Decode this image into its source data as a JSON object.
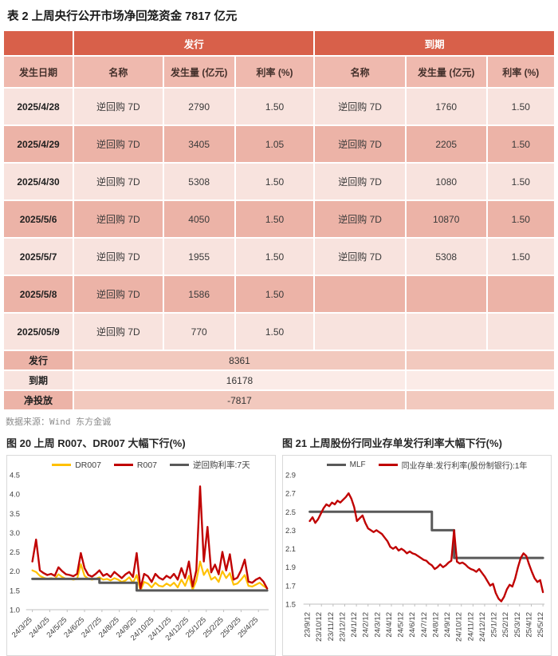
{
  "table": {
    "title": "表 2  上周央行公开市场净回笼资金 7817 亿元",
    "group_headers": [
      "发行",
      "到期"
    ],
    "columns": [
      "发生日期",
      "名称",
      "发生量 (亿元)",
      "利率 (%)",
      "名称",
      "发生量 (亿元)",
      "利率 (%)"
    ],
    "rows": [
      [
        "2025/4/28",
        "逆回购 7D",
        "2790",
        "1.50",
        "逆回购 7D",
        "1760",
        "1.50"
      ],
      [
        "2025/4/29",
        "逆回购 7D",
        "3405",
        "1.05",
        "逆回购 7D",
        "2205",
        "1.50"
      ],
      [
        "2025/4/30",
        "逆回购 7D",
        "5308",
        "1.50",
        "逆回购 7D",
        "1080",
        "1.50"
      ],
      [
        "2025/5/6",
        "逆回购 7D",
        "4050",
        "1.50",
        "逆回购 7D",
        "10870",
        "1.50"
      ],
      [
        "2025/5/7",
        "逆回购 7D",
        "1955",
        "1.50",
        "逆回购 7D",
        "5308",
        "1.50"
      ],
      [
        "2025/5/8",
        "逆回购 7D",
        "1586",
        "1.50",
        "",
        "",
        ""
      ],
      [
        "2025/05/9",
        "逆回购 7D",
        "770",
        "1.50",
        "",
        "",
        ""
      ]
    ],
    "summary_rows": [
      {
        "label": "发行",
        "value": "8361"
      },
      {
        "label": "到期",
        "value": "16178"
      },
      {
        "label": "净投放",
        "value": "-7817"
      }
    ],
    "source": "数据来源：Wind 东方金诚"
  },
  "colors": {
    "header_bg": "#D8604A",
    "subheader_bg": "#EFB9AE",
    "row_light": "#F8E3DE",
    "row_dark": "#ECB3A7",
    "series_yellow": "#FFC000",
    "series_red": "#C00000",
    "series_gray": "#595959",
    "axis_gray": "#bfbfbf"
  },
  "chart_data": [
    {
      "type": "line",
      "title": "图 20 上周 R007、DR007 大幅下行(%)",
      "ylim": [
        1.0,
        4.5
      ],
      "y_ticks": [
        4.5,
        4.0,
        3.5,
        3.0,
        2.5,
        2.0,
        1.5,
        1.0
      ],
      "x_labels": [
        "24/3/25",
        "24/4/25",
        "24/5/25",
        "24/6/25",
        "24/7/25",
        "24/8/25",
        "24/9/25",
        "24/10/25",
        "24/11/25",
        "24/12/25",
        "25/1/25",
        "25/2/25",
        "25/3/25",
        "25/4/25"
      ],
      "legend_position": "top",
      "grid": false,
      "series": [
        {
          "name": "DR007",
          "color": "#FFC000",
          "width": 2.2,
          "step": false,
          "values": [
            2.02,
            1.98,
            1.88,
            1.83,
            1.8,
            1.82,
            1.8,
            1.92,
            1.85,
            1.8,
            1.8,
            1.78,
            1.8,
            2.18,
            1.88,
            1.8,
            1.78,
            1.8,
            1.84,
            1.78,
            1.8,
            1.76,
            1.82,
            1.78,
            1.72,
            1.76,
            1.84,
            1.7,
            1.9,
            1.5,
            1.72,
            1.68,
            1.58,
            1.7,
            1.62,
            1.6,
            1.68,
            1.62,
            1.7,
            1.58,
            1.78,
            1.62,
            1.88,
            1.52,
            1.75,
            2.25,
            1.9,
            2.05,
            1.78,
            1.85,
            1.72,
            2.0,
            1.82,
            1.95,
            1.65,
            1.68,
            1.78,
            1.9,
            1.62,
            1.6,
            1.65,
            1.7,
            1.62,
            1.55
          ]
        },
        {
          "name": "R007",
          "color": "#C00000",
          "width": 2.4,
          "step": false,
          "values": [
            2.25,
            2.82,
            2.02,
            1.95,
            1.9,
            1.93,
            1.88,
            2.1,
            2.0,
            1.92,
            1.9,
            1.87,
            1.93,
            2.47,
            2.08,
            1.9,
            1.86,
            1.93,
            2.02,
            1.88,
            1.93,
            1.85,
            1.98,
            1.9,
            1.82,
            1.92,
            1.98,
            1.85,
            2.47,
            1.55,
            1.93,
            1.87,
            1.72,
            1.93,
            1.83,
            1.78,
            1.88,
            1.82,
            1.93,
            1.78,
            2.08,
            1.82,
            2.25,
            1.6,
            2.02,
            4.2,
            2.25,
            3.15,
            1.97,
            2.17,
            1.92,
            2.5,
            2.02,
            2.44,
            1.78,
            1.83,
            2.02,
            2.3,
            1.73,
            1.7,
            1.78,
            1.83,
            1.73,
            1.55
          ]
        },
        {
          "name": "逆回购利率:7天",
          "color": "#595959",
          "width": 3,
          "step": true,
          "values": [
            1.8,
            1.8,
            1.8,
            1.8,
            1.8,
            1.8,
            1.8,
            1.8,
            1.8,
            1.8,
            1.8,
            1.8,
            1.8,
            1.8,
            1.8,
            1.8,
            1.8,
            1.8,
            1.7,
            1.7,
            1.7,
            1.7,
            1.7,
            1.7,
            1.7,
            1.7,
            1.7,
            1.7,
            1.5,
            1.5,
            1.5,
            1.5,
            1.5,
            1.5,
            1.5,
            1.5,
            1.5,
            1.5,
            1.5,
            1.5,
            1.5,
            1.5,
            1.5,
            1.5,
            1.5,
            1.5,
            1.5,
            1.5,
            1.5,
            1.5,
            1.5,
            1.5,
            1.5,
            1.5,
            1.5,
            1.5,
            1.5,
            1.5,
            1.5,
            1.5,
            1.5,
            1.5,
            1.5,
            1.5
          ]
        }
      ]
    },
    {
      "type": "line",
      "title": "图 21 上周股份行同业存单发行利率大幅下行(%)",
      "ylim": [
        1.5,
        2.9
      ],
      "y_ticks": [
        2.9,
        2.7,
        2.5,
        2.3,
        2.1,
        1.9,
        1.7,
        1.5
      ],
      "x_labels": [
        "23/9/12",
        "23/10/12",
        "23/11/12",
        "23/12/12",
        "24/1/12",
        "24/2/12",
        "24/3/12",
        "24/4/12",
        "24/5/12",
        "24/6/12",
        "24/7/12",
        "24/8/12",
        "24/9/12",
        "24/10/12",
        "24/11/12",
        "24/12/12",
        "25/1/12",
        "25/2/12",
        "25/3/12",
        "25/4/12",
        "25/5/12"
      ],
      "legend_position": "top",
      "grid": false,
      "series": [
        {
          "name": "MLF",
          "color": "#595959",
          "width": 3,
          "step": true,
          "values": [
            2.5,
            2.5,
            2.5,
            2.5,
            2.5,
            2.5,
            2.5,
            2.5,
            2.5,
            2.5,
            2.5,
            2.5,
            2.5,
            2.5,
            2.5,
            2.5,
            2.5,
            2.5,
            2.5,
            2.5,
            2.5,
            2.5,
            2.5,
            2.5,
            2.5,
            2.5,
            2.5,
            2.5,
            2.5,
            2.5,
            2.5,
            2.5,
            2.5,
            2.5,
            2.5,
            2.5,
            2.5,
            2.5,
            2.5,
            2.5,
            2.5,
            2.5,
            2.5,
            2.5,
            2.3,
            2.3,
            2.3,
            2.3,
            2.3,
            2.3,
            2.3,
            2.3,
            2.0,
            2.0,
            2.0,
            2.0,
            2.0,
            2.0,
            2.0,
            2.0,
            2.0,
            2.0,
            2.0,
            2.0,
            2.0,
            2.0,
            2.0,
            2.0,
            2.0,
            2.0,
            2.0,
            2.0,
            2.0,
            2.0,
            2.0,
            2.0,
            2.0,
            2.0,
            2.0,
            2.0,
            2.0,
            2.0,
            2.0,
            2.0,
            2.0
          ]
        },
        {
          "name": "同业存单:发行利率(股份制银行):1年",
          "color": "#C00000",
          "width": 2.4,
          "step": false,
          "values": [
            2.4,
            2.44,
            2.38,
            2.42,
            2.48,
            2.54,
            2.58,
            2.56,
            2.6,
            2.58,
            2.62,
            2.6,
            2.63,
            2.66,
            2.7,
            2.64,
            2.55,
            2.4,
            2.43,
            2.46,
            2.38,
            2.32,
            2.3,
            2.28,
            2.3,
            2.28,
            2.26,
            2.22,
            2.18,
            2.12,
            2.1,
            2.12,
            2.08,
            2.1,
            2.08,
            2.05,
            2.07,
            2.05,
            2.04,
            2.02,
            2.0,
            1.98,
            1.97,
            1.94,
            1.92,
            1.88,
            1.9,
            1.93,
            1.9,
            1.92,
            1.95,
            1.97,
            2.3,
            1.96,
            1.94,
            1.95,
            1.93,
            1.9,
            1.88,
            1.87,
            1.85,
            1.88,
            1.84,
            1.8,
            1.75,
            1.7,
            1.72,
            1.62,
            1.56,
            1.53,
            1.58,
            1.66,
            1.71,
            1.69,
            1.78,
            1.9,
            2.0,
            2.05,
            2.02,
            1.93,
            1.85,
            1.78,
            1.74,
            1.76,
            1.63
          ]
        }
      ]
    }
  ]
}
